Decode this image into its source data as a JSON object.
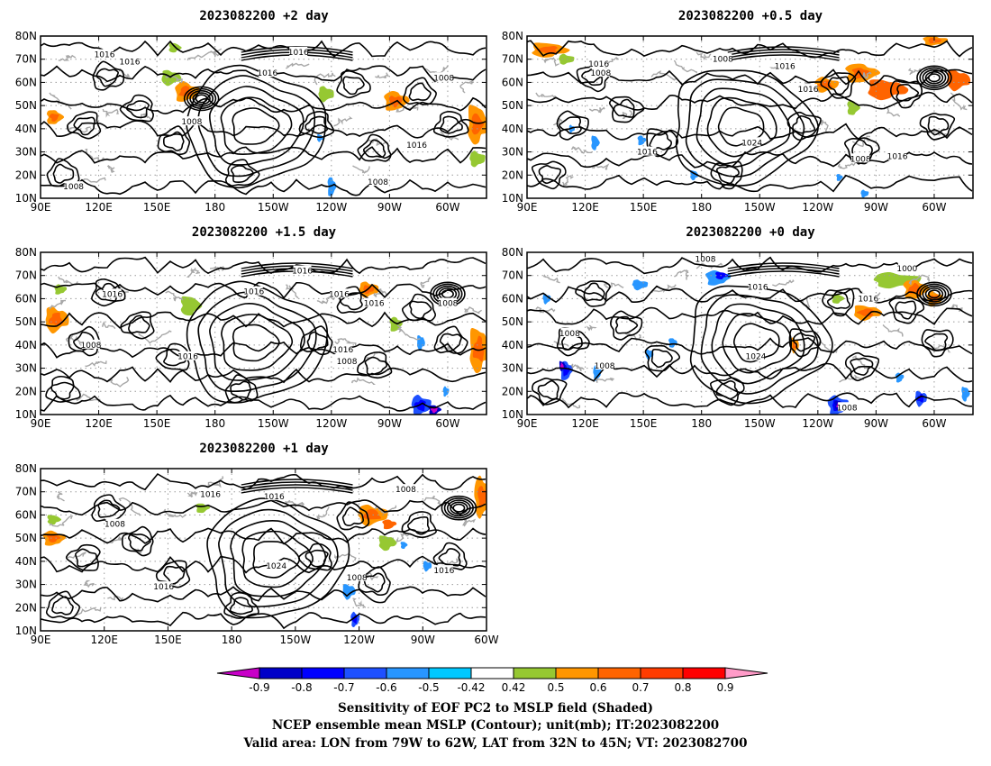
{
  "chart_data": [
    {
      "type": "heatmap",
      "title": "2023082200 +2 day",
      "x_ticks": [
        "90E",
        "120E",
        "150E",
        "180",
        "150W",
        "120W",
        "90W",
        "60W"
      ],
      "y_ticks": [
        "10N",
        "20N",
        "30N",
        "40N",
        "50N",
        "60N",
        "70N",
        "80N"
      ],
      "x_range": [
        90,
        320
      ],
      "y_range": [
        10,
        80
      ],
      "contour_labels": [
        {
          "text": "1016",
          "lon": 123,
          "lat": 72
        },
        {
          "text": "1016",
          "lon": 136,
          "lat": 69
        },
        {
          "text": "1016",
          "lon": 223,
          "lat": 73
        },
        {
          "text": "1016",
          "lon": 207,
          "lat": 64
        },
        {
          "text": "1008",
          "lon": 298,
          "lat": 62
        },
        {
          "text": "1008",
          "lon": 168,
          "lat": 43
        },
        {
          "text": "1016",
          "lon": 284,
          "lat": 33
        },
        {
          "text": "1008",
          "lon": 264,
          "lat": 17
        },
        {
          "text": "1008",
          "lon": 107,
          "lat": 15
        }
      ],
      "shaded": [
        {
          "lon": 97,
          "lat": 45,
          "rx": 4,
          "ry": 3,
          "v": 0.6
        },
        {
          "lon": 157,
          "lat": 62,
          "rx": 5,
          "ry": 3,
          "v": 0.5
        },
        {
          "lon": 165,
          "lat": 56,
          "rx": 6,
          "ry": 4,
          "v": 0.6
        },
        {
          "lon": 159,
          "lat": 75,
          "rx": 3,
          "ry": 2,
          "v": 0.5
        },
        {
          "lon": 237,
          "lat": 55,
          "rx": 4,
          "ry": 3,
          "v": 0.5
        },
        {
          "lon": 273,
          "lat": 52,
          "rx": 6,
          "ry": 4,
          "v": 0.6
        },
        {
          "lon": 315,
          "lat": 42,
          "rx": 5,
          "ry": 8,
          "v": 0.6
        },
        {
          "lon": 315,
          "lat": 27,
          "rx": 4,
          "ry": 3,
          "v": 0.5
        },
        {
          "lon": 240,
          "lat": 15,
          "rx": 2,
          "ry": 4,
          "v": -0.5
        },
        {
          "lon": 234,
          "lat": 36,
          "rx": 1.5,
          "ry": 1.5,
          "v": -0.5
        }
      ]
    },
    {
      "type": "heatmap",
      "title": "2023082200 +0.5 day",
      "x_ticks": [
        "90E",
        "120E",
        "150E",
        "180",
        "150W",
        "120W",
        "90W",
        "60W"
      ],
      "y_ticks": [
        "10N",
        "20N",
        "30N",
        "40N",
        "50N",
        "60N",
        "70N",
        "80N"
      ],
      "x_range": [
        90,
        320
      ],
      "y_range": [
        10,
        80
      ],
      "contour_labels": [
        {
          "text": "1016",
          "lon": 127,
          "lat": 68
        },
        {
          "text": "1008",
          "lon": 128,
          "lat": 64
        },
        {
          "text": "1008",
          "lon": 191,
          "lat": 70
        },
        {
          "text": "1016",
          "lon": 223,
          "lat": 67
        },
        {
          "text": "1016",
          "lon": 235,
          "lat": 57
        },
        {
          "text": "1024",
          "lon": 206,
          "lat": 34
        },
        {
          "text": "1016",
          "lon": 152,
          "lat": 30
        },
        {
          "text": "1008",
          "lon": 262,
          "lat": 27
        },
        {
          "text": "1016",
          "lon": 281,
          "lat": 28
        }
      ],
      "shaded": [
        {
          "lon": 101,
          "lat": 74,
          "rx": 9,
          "ry": 3,
          "v": 0.6
        },
        {
          "lon": 110,
          "lat": 70,
          "rx": 4,
          "ry": 2,
          "v": 0.5
        },
        {
          "lon": 262,
          "lat": 64,
          "rx": 8,
          "ry": 4,
          "v": 0.6
        },
        {
          "lon": 275,
          "lat": 57,
          "rx": 10,
          "ry": 4,
          "v": 0.7
        },
        {
          "lon": 244,
          "lat": 59,
          "rx": 6,
          "ry": 3,
          "v": 0.6
        },
        {
          "lon": 258,
          "lat": 49,
          "rx": 3,
          "ry": 3,
          "v": 0.5
        },
        {
          "lon": 312,
          "lat": 61,
          "rx": 6,
          "ry": 4,
          "v": 0.7
        },
        {
          "lon": 300,
          "lat": 78,
          "rx": 6,
          "ry": 2,
          "v": 0.6
        },
        {
          "lon": 125,
          "lat": 34,
          "rx": 2,
          "ry": 3,
          "v": -0.5
        },
        {
          "lon": 113,
          "lat": 40,
          "rx": 1.5,
          "ry": 1.5,
          "v": -0.5
        },
        {
          "lon": 149,
          "lat": 35,
          "rx": 2,
          "ry": 2,
          "v": -0.5
        },
        {
          "lon": 176,
          "lat": 20,
          "rx": 2,
          "ry": 2,
          "v": -0.5
        },
        {
          "lon": 264,
          "lat": 12,
          "rx": 2,
          "ry": 1.5,
          "v": -0.5
        },
        {
          "lon": 251,
          "lat": 19,
          "rx": 1.5,
          "ry": 1.5,
          "v": -0.5
        }
      ]
    },
    {
      "type": "heatmap",
      "title": "2023082200 +1.5 day",
      "x_ticks": [
        "90E",
        "120E",
        "150E",
        "180",
        "150W",
        "120W",
        "90W",
        "60W"
      ],
      "y_ticks": [
        "10N",
        "20N",
        "30N",
        "40N",
        "50N",
        "60N",
        "70N",
        "80N"
      ],
      "x_range": [
        90,
        320
      ],
      "y_range": [
        10,
        80
      ],
      "contour_labels": [
        {
          "text": "1016",
          "lon": 225,
          "lat": 72
        },
        {
          "text": "1016",
          "lon": 127,
          "lat": 62
        },
        {
          "text": "1016",
          "lon": 200,
          "lat": 63
        },
        {
          "text": "1016",
          "lon": 244,
          "lat": 62
        },
        {
          "text": "1016",
          "lon": 262,
          "lat": 58
        },
        {
          "text": "1008",
          "lon": 300,
          "lat": 58
        },
        {
          "text": "1008",
          "lon": 116,
          "lat": 40
        },
        {
          "text": "1016",
          "lon": 166,
          "lat": 35
        },
        {
          "text": "1016",
          "lon": 246,
          "lat": 38
        },
        {
          "text": "1008",
          "lon": 248,
          "lat": 33
        }
      ],
      "shaded": [
        {
          "lon": 98,
          "lat": 51,
          "rx": 6,
          "ry": 5,
          "v": 0.6
        },
        {
          "lon": 100,
          "lat": 64,
          "rx": 3,
          "ry": 2,
          "v": 0.5
        },
        {
          "lon": 167,
          "lat": 57,
          "rx": 5,
          "ry": 4,
          "v": 0.5
        },
        {
          "lon": 259,
          "lat": 64,
          "rx": 5,
          "ry": 3,
          "v": 0.6
        },
        {
          "lon": 273,
          "lat": 49,
          "rx": 3,
          "ry": 3,
          "v": 0.5
        },
        {
          "lon": 316,
          "lat": 38,
          "rx": 5,
          "ry": 9,
          "v": 0.6
        },
        {
          "lon": 286,
          "lat": 14,
          "rx": 5,
          "ry": 4,
          "v": -0.6
        },
        {
          "lon": 293,
          "lat": 12,
          "rx": 3,
          "ry": 2,
          "v": -0.8
        },
        {
          "lon": 286,
          "lat": 41,
          "rx": 2,
          "ry": 3,
          "v": -0.5
        },
        {
          "lon": 299,
          "lat": 20,
          "rx": 1.5,
          "ry": 2,
          "v": -0.5
        }
      ]
    },
    {
      "type": "heatmap",
      "title": "2023082200 +0 day",
      "x_ticks": [
        "90E",
        "120E",
        "150E",
        "180",
        "150W",
        "120W",
        "90W",
        "60W"
      ],
      "y_ticks": [
        "10N",
        "20N",
        "30N",
        "40N",
        "50N",
        "60N",
        "70N",
        "80N"
      ],
      "x_range": [
        90,
        320
      ],
      "y_range": [
        10,
        80
      ],
      "contour_labels": [
        {
          "text": "1008",
          "lon": 182,
          "lat": 77
        },
        {
          "text": "1000",
          "lon": 286,
          "lat": 73
        },
        {
          "text": "1016",
          "lon": 209,
          "lat": 65
        },
        {
          "text": "1016",
          "lon": 266,
          "lat": 60
        },
        {
          "text": "1008",
          "lon": 112,
          "lat": 45
        },
        {
          "text": "1008",
          "lon": 130,
          "lat": 31
        },
        {
          "text": "1024",
          "lon": 208,
          "lat": 35
        },
        {
          "text": "1008",
          "lon": 255,
          "lat": 13
        }
      ],
      "shaded": [
        {
          "lon": 280,
          "lat": 68,
          "rx": 12,
          "ry": 3,
          "v": 0.5
        },
        {
          "lon": 290,
          "lat": 64,
          "rx": 6,
          "ry": 4,
          "v": 0.6
        },
        {
          "lon": 265,
          "lat": 54,
          "rx": 7,
          "ry": 3,
          "v": 0.6
        },
        {
          "lon": 300,
          "lat": 60,
          "rx": 4,
          "ry": 3,
          "v": 0.6
        },
        {
          "lon": 250,
          "lat": 60,
          "rx": 3,
          "ry": 2,
          "v": 0.5
        },
        {
          "lon": 228,
          "lat": 40,
          "rx": 2,
          "ry": 3,
          "v": 0.6
        },
        {
          "lon": 188,
          "lat": 69,
          "rx": 6,
          "ry": 3,
          "v": -0.5
        },
        {
          "lon": 190,
          "lat": 70,
          "rx": 3,
          "ry": 1.5,
          "v": -0.7
        },
        {
          "lon": 148,
          "lat": 66,
          "rx": 4,
          "ry": 2,
          "v": -0.5
        },
        {
          "lon": 110,
          "lat": 29,
          "rx": 3,
          "ry": 4,
          "v": -0.6
        },
        {
          "lon": 108,
          "lat": 31,
          "rx": 1.5,
          "ry": 2,
          "v": -0.8
        },
        {
          "lon": 126,
          "lat": 28,
          "rx": 2,
          "ry": 3,
          "v": -0.5
        },
        {
          "lon": 165,
          "lat": 41,
          "rx": 2,
          "ry": 2,
          "v": -0.5
        },
        {
          "lon": 153,
          "lat": 36,
          "rx": 2,
          "ry": 2,
          "v": -0.5
        },
        {
          "lon": 250,
          "lat": 14,
          "rx": 5,
          "ry": 4,
          "v": -0.6
        },
        {
          "lon": 251,
          "lat": 14,
          "rx": 2.5,
          "ry": 2,
          "v": -0.8
        },
        {
          "lon": 293,
          "lat": 17,
          "rx": 3,
          "ry": 3,
          "v": -0.6
        },
        {
          "lon": 282,
          "lat": 26,
          "rx": 2,
          "ry": 2,
          "v": -0.5
        },
        {
          "lon": 316,
          "lat": 19,
          "rx": 2,
          "ry": 3,
          "v": -0.5
        },
        {
          "lon": 100,
          "lat": 60,
          "rx": 2,
          "ry": 2,
          "v": -0.5
        }
      ]
    },
    {
      "type": "heatmap",
      "title": "2023082200 +1 day",
      "x_ticks": [
        "90E",
        "120E",
        "150E",
        "180",
        "150W",
        "120W",
        "90W",
        "60W"
      ],
      "y_ticks": [
        "10N",
        "20N",
        "30N",
        "40N",
        "50N",
        "60N",
        "70N",
        "80N"
      ],
      "x_range": [
        90,
        300
      ],
      "y_range": [
        10,
        80
      ],
      "contour_labels": [
        {
          "text": "1016",
          "lon": 170,
          "lat": 69
        },
        {
          "text": "1016",
          "lon": 200,
          "lat": 68
        },
        {
          "text": "1008",
          "lon": 262,
          "lat": 71
        },
        {
          "text": "1008",
          "lon": 125,
          "lat": 56
        },
        {
          "text": "1024",
          "lon": 201,
          "lat": 38
        },
        {
          "text": "1008",
          "lon": 239,
          "lat": 33
        },
        {
          "text": "1016",
          "lon": 280,
          "lat": 36
        },
        {
          "text": "1016",
          "lon": 148,
          "lat": 29
        }
      ],
      "shaded": [
        {
          "lon": 96,
          "lat": 50,
          "rx": 5,
          "ry": 3,
          "v": 0.6
        },
        {
          "lon": 96,
          "lat": 58,
          "rx": 3,
          "ry": 2,
          "v": 0.5
        },
        {
          "lon": 246,
          "lat": 60,
          "rx": 7,
          "ry": 4,
          "v": 0.6
        },
        {
          "lon": 254,
          "lat": 56,
          "rx": 3,
          "ry": 2,
          "v": 0.7
        },
        {
          "lon": 253,
          "lat": 48,
          "rx": 4,
          "ry": 3,
          "v": 0.5
        },
        {
          "lon": 298,
          "lat": 68,
          "rx": 4,
          "ry": 8,
          "v": 0.6
        },
        {
          "lon": 166,
          "lat": 63,
          "rx": 3,
          "ry": 2,
          "v": 0.5
        },
        {
          "lon": 235,
          "lat": 27,
          "rx": 3,
          "ry": 3,
          "v": -0.5
        },
        {
          "lon": 238,
          "lat": 15,
          "rx": 2,
          "ry": 3,
          "v": -0.6
        },
        {
          "lon": 261,
          "lat": 47,
          "rx": 1.5,
          "ry": 1.5,
          "v": -0.5
        },
        {
          "lon": 272,
          "lat": 38,
          "rx": 2,
          "ry": 2,
          "v": -0.5
        }
      ]
    }
  ],
  "colorbar": {
    "tick_labels": [
      "-0.9",
      "-0.8",
      "-0.7",
      "-0.6",
      "-0.5",
      "-0.42",
      "0.42",
      "0.5",
      "0.6",
      "0.7",
      "0.8",
      "0.9"
    ],
    "colors": [
      "#c800c8",
      "#0000c8",
      "#0000ff",
      "#1e50ff",
      "#2896ff",
      "#00c8ff",
      "#ffffff",
      "#96c832",
      "#ff9600",
      "#ff6400",
      "#ff3c00",
      "#ff0000",
      "#ff9bc8"
    ]
  },
  "caption": {
    "line1": "Sensitivity of EOF PC2 to MSLP field (Shaded)",
    "line2": "NCEP ensemble mean MSLP (Contour); unit(mb); IT:2023082200",
    "line3": "Valid area: LON from 79W to 62W, LAT from 32N to 45N; VT: 2023082700"
  }
}
